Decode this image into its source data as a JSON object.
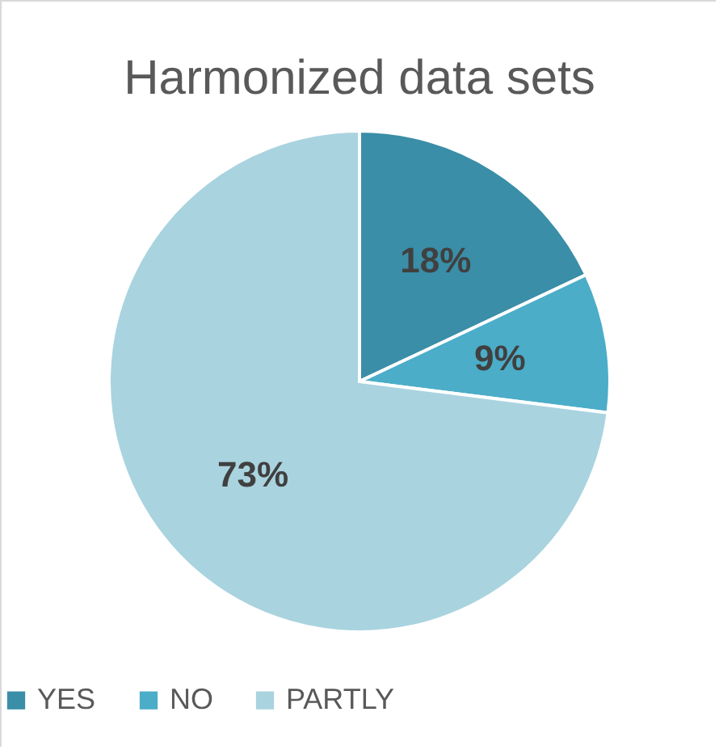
{
  "chart_data": {
    "type": "pie",
    "title": "Harmonized data sets",
    "categories": [
      "YES",
      "NO",
      "PARTLY"
    ],
    "values": [
      18,
      9,
      73
    ],
    "value_labels": [
      "18%",
      "9%",
      "73%"
    ],
    "colors": [
      "#3a8ea7",
      "#4badc8",
      "#a9d3df"
    ],
    "legend": "bottom"
  }
}
